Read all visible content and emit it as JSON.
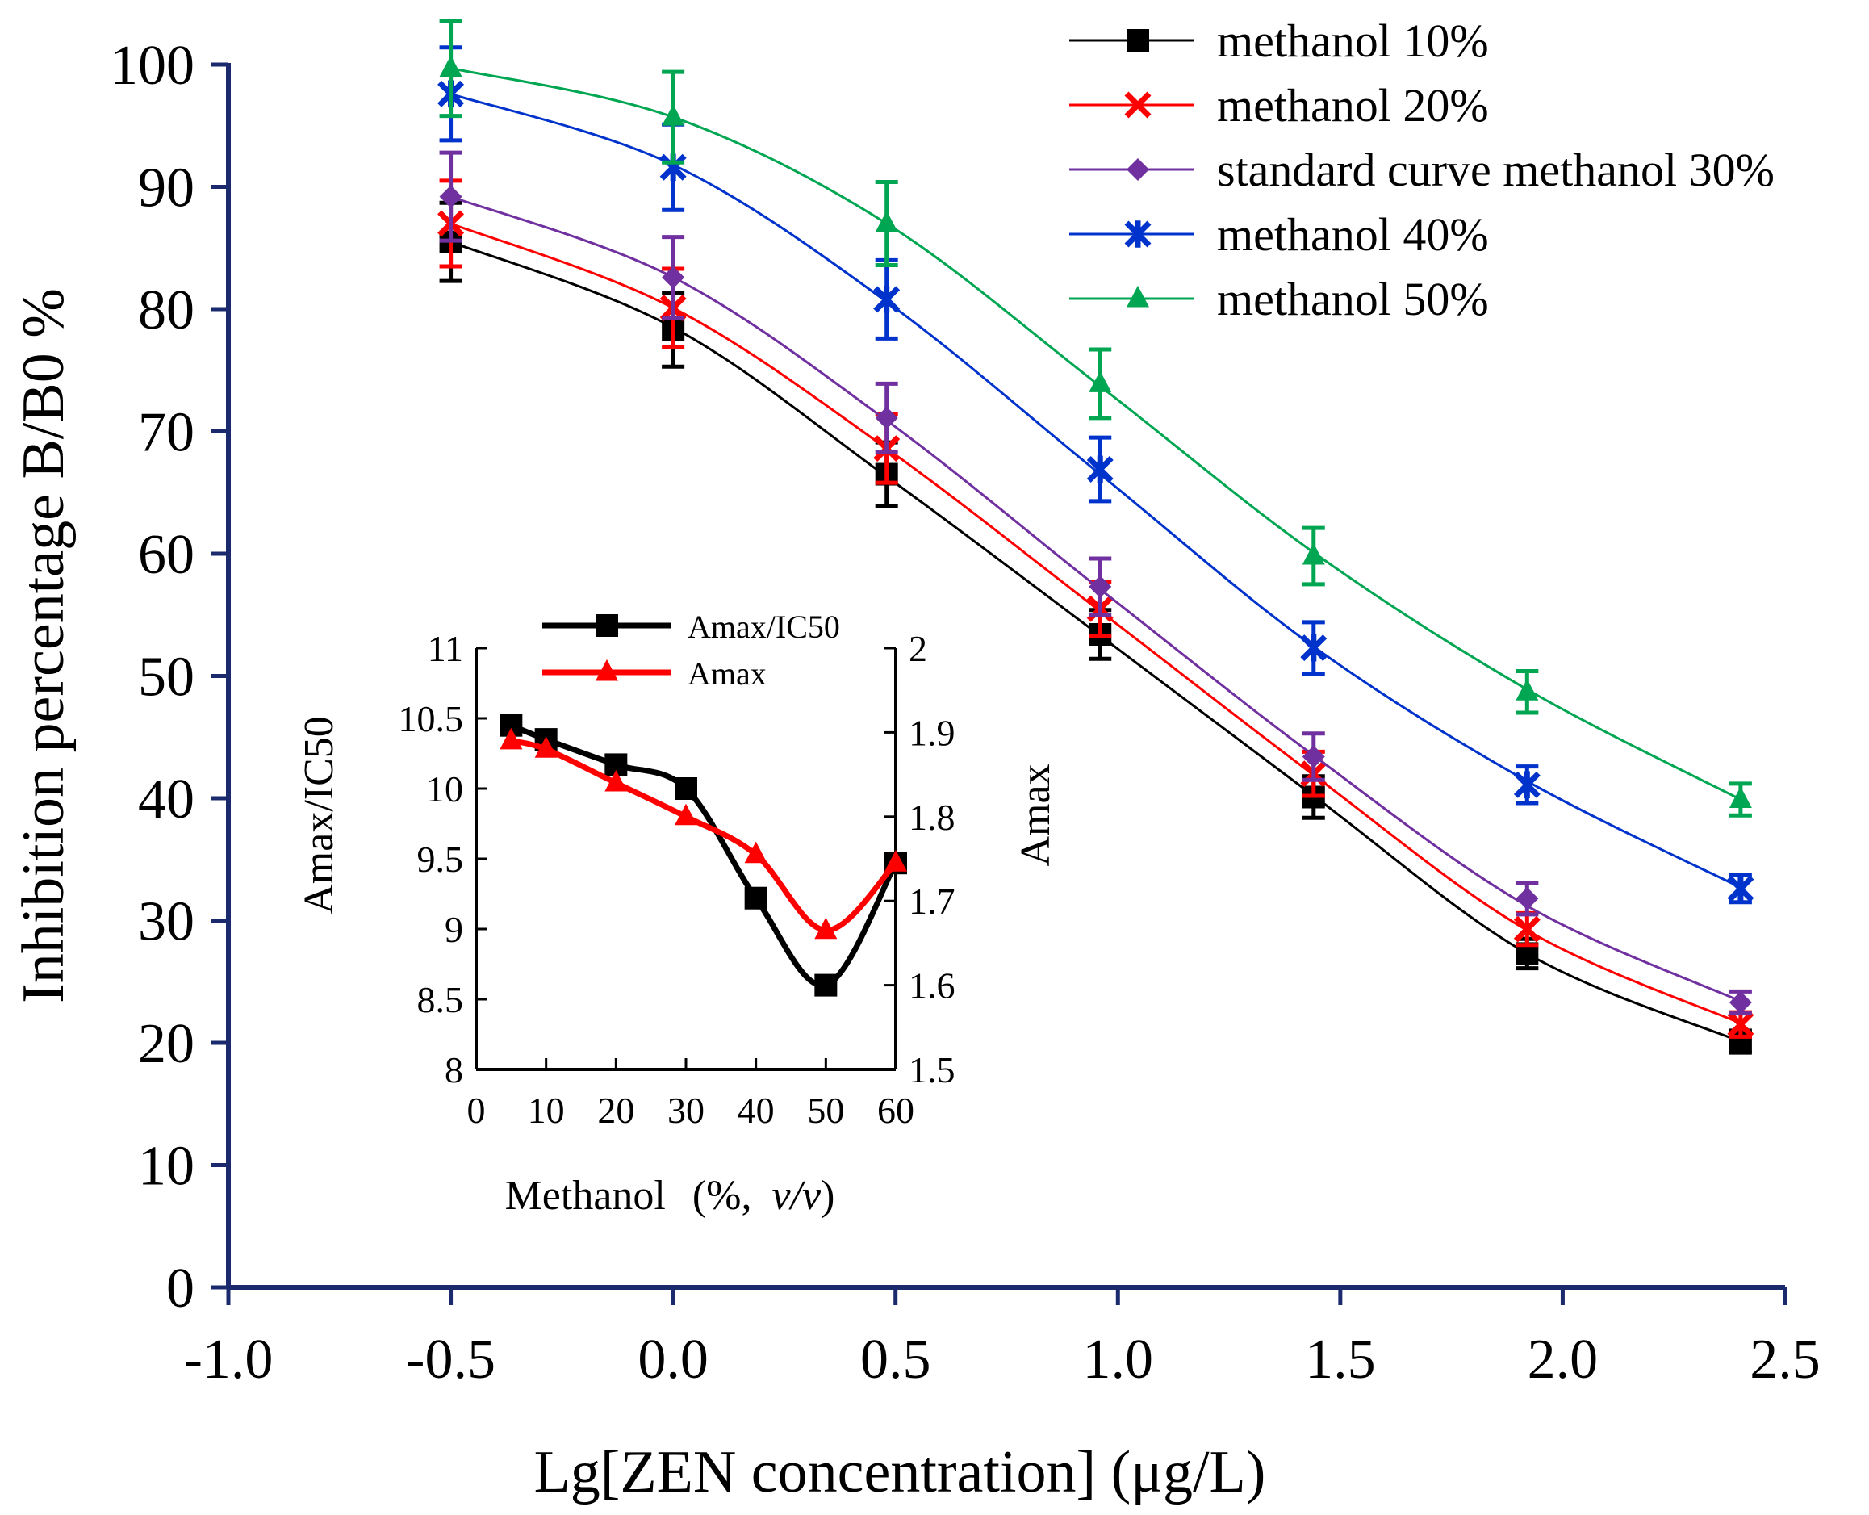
{
  "chart_data": [
    {
      "type": "line",
      "title": "",
      "xlabel": "Lg[ZEN concentration] (μg/L)",
      "ylabel": "Inhibition percentage B/B0 %",
      "xlim": [
        -1.0,
        2.5
      ],
      "ylim": [
        0,
        100
      ],
      "xticks": [
        "-1.0",
        "-0.5",
        "0.0",
        "0.5",
        "1.0",
        "1.5",
        "2.0",
        "2.5"
      ],
      "yticks": [
        "0",
        "10",
        "20",
        "30",
        "40",
        "50",
        "60",
        "70",
        "80",
        "90",
        "100"
      ],
      "x": [
        -0.5,
        0.0,
        0.48,
        0.96,
        1.44,
        1.92,
        2.4
      ],
      "series": [
        {
          "name": "methanol 10%",
          "color": "#000000",
          "marker": "square",
          "values": [
            85.5,
            78.3,
            66.5,
            53.4,
            40.1,
            27.3,
            20.1
          ],
          "error": [
            3.2,
            3.0,
            2.6,
            2.0,
            1.7,
            1.2,
            0.9
          ],
          "curve": [
            85.5,
            78.5,
            66.3,
            53.3,
            40.2,
            27.3,
            20.1
          ]
        },
        {
          "name": "methanol 20%",
          "color": "#ff0000",
          "marker": "x",
          "values": [
            87.0,
            80.1,
            68.6,
            55.5,
            42.0,
            29.3,
            21.5
          ],
          "error": [
            3.5,
            3.2,
            2.8,
            2.2,
            1.8,
            1.3,
            1.0
          ],
          "curve": [
            87.0,
            80.1,
            68.6,
            55.3,
            41.9,
            29.2,
            21.6
          ]
        },
        {
          "name": "standard curve methanol 30%",
          "color": "#7030a0",
          "marker": "diamond",
          "values": [
            89.2,
            82.6,
            71.1,
            57.3,
            43.4,
            31.8,
            23.3
          ],
          "error": [
            3.6,
            3.3,
            2.8,
            2.3,
            1.9,
            1.3,
            0.9
          ],
          "curve": [
            89.2,
            82.6,
            70.9,
            57.1,
            43.5,
            31.2,
            23.4
          ]
        },
        {
          "name": "methanol 40%",
          "color": "#0033cc",
          "marker": "asterisk",
          "values": [
            97.6,
            91.6,
            80.8,
            66.9,
            52.3,
            41.1,
            32.6
          ],
          "error": [
            3.8,
            3.5,
            3.2,
            2.6,
            2.1,
            1.5,
            1.1
          ],
          "curve": [
            97.6,
            91.8,
            80.6,
            66.5,
            52.4,
            41.4,
            32.7
          ]
        },
        {
          "name": "methanol 50%",
          "color": "#00a651",
          "marker": "triangle",
          "values": [
            99.7,
            95.7,
            87.0,
            73.9,
            59.8,
            48.7,
            39.9
          ],
          "error": [
            3.9,
            3.7,
            3.4,
            2.8,
            2.3,
            1.7,
            1.3
          ],
          "curve": [
            99.7,
            95.7,
            87.0,
            73.7,
            60.1,
            48.9,
            39.9
          ]
        }
      ]
    },
    {
      "type": "line",
      "xlabel": "Methanol",
      "xlabel_suffix": "(%,",
      "xlabel_italic": "v/v",
      "xlabel_close": ")",
      "ylabel": "Amax/IC50",
      "y2label": "Amax",
      "xlim": [
        0,
        60
      ],
      "ylim": [
        8,
        11
      ],
      "y2lim": [
        1.5,
        2.0
      ],
      "xticks": [
        "0",
        "10",
        "20",
        "30",
        "40",
        "50",
        "60"
      ],
      "yticks": [
        "8",
        "8.5",
        "9",
        "9.5",
        "10",
        "10.5",
        "11"
      ],
      "y2ticks": [
        "1.5",
        "1.6",
        "1.7",
        "1.8",
        "1.9",
        "2"
      ],
      "x": [
        5,
        10,
        20,
        30,
        40,
        50,
        60
      ],
      "series": [
        {
          "name": "Amax/IC50",
          "color": "#000000",
          "marker": "square",
          "axis": "left",
          "values": [
            10.45,
            10.35,
            10.17,
            10.0,
            9.22,
            8.6,
            9.47
          ]
        },
        {
          "name": "Amax",
          "color": "#ff0000",
          "marker": "triangle",
          "axis": "right",
          "values": [
            1.89,
            1.88,
            1.84,
            1.8,
            1.755,
            1.665,
            1.745
          ]
        }
      ]
    }
  ]
}
